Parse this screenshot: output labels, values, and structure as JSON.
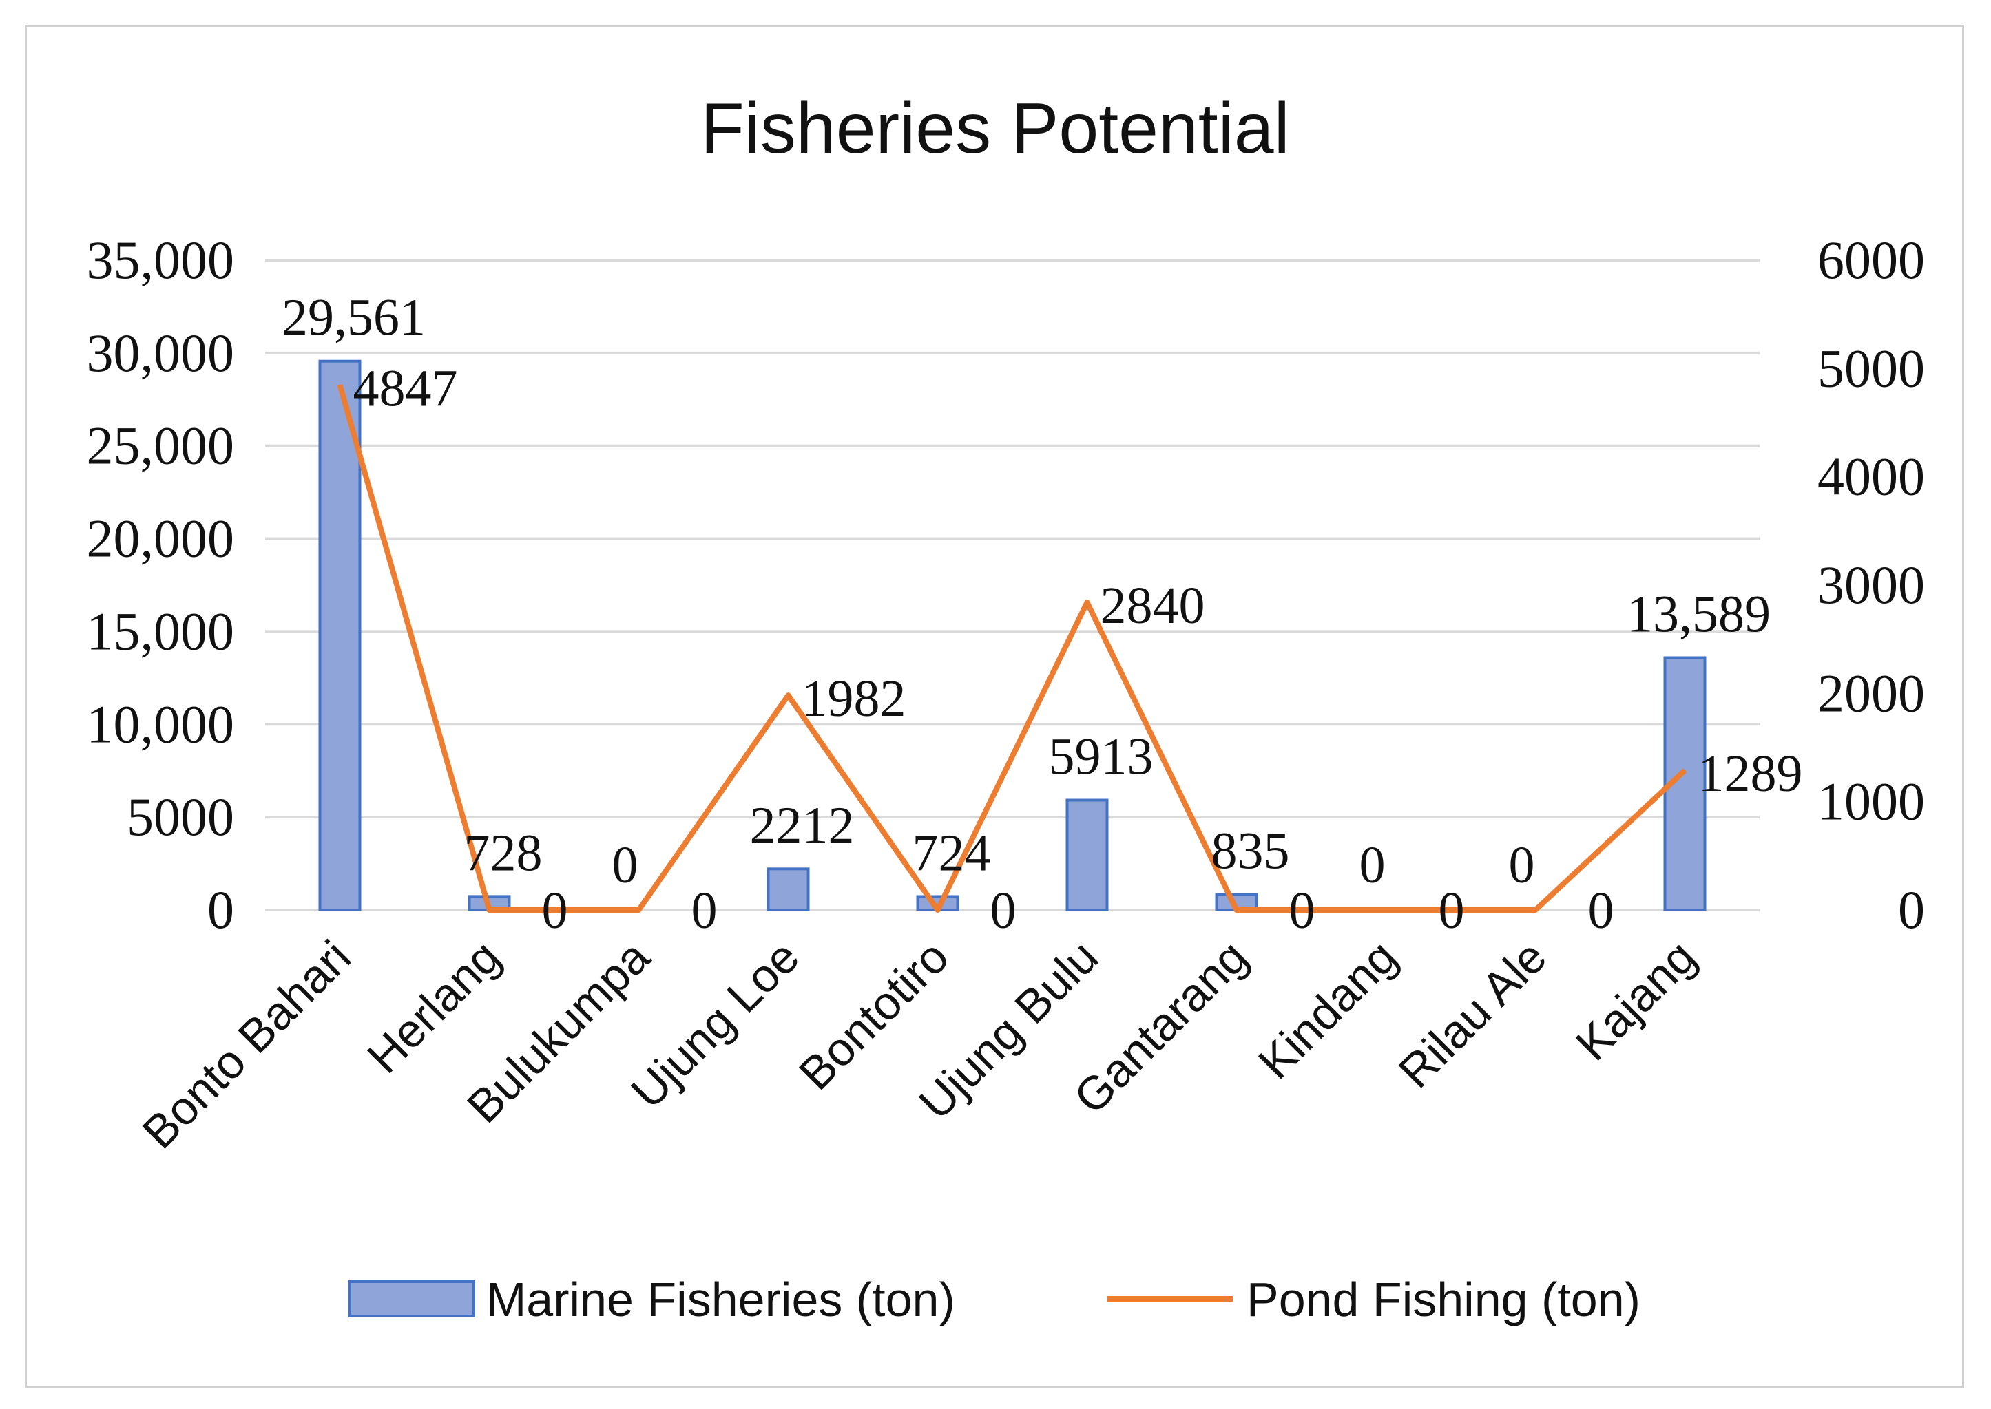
{
  "chart_data": {
    "type": "bar+line",
    "title": "Fisheries Potential",
    "categories": [
      "Bonto Bahari",
      "Herlang",
      "Bulukumpa",
      "Ujung Loe",
      "Bontotiro",
      "Ujung Bulu",
      "Gantarang",
      "Kindang",
      "Rilau Ale",
      "Kajang"
    ],
    "series": [
      {
        "name": "Marine Fisheries (ton)",
        "type": "bar",
        "axis": "left",
        "color": "#8fa4d8",
        "border_color": "#4472c4",
        "values": [
          29561,
          728,
          0,
          2212,
          724,
          5913,
          835,
          0,
          0,
          13589
        ],
        "labels": [
          "29,561",
          "728",
          "0",
          "2212",
          "724",
          "5913",
          "835",
          "0",
          "0",
          "13,589"
        ]
      },
      {
        "name": "Pond Fishing (ton)",
        "type": "line",
        "axis": "right",
        "color": "#ed7d31",
        "values": [
          4847,
          0,
          0,
          1982,
          0,
          2840,
          0,
          0,
          0,
          1289
        ],
        "labels": [
          "4847",
          "0",
          "0",
          "1982",
          "0",
          "2840",
          "0",
          "0",
          "0",
          "1289"
        ]
      }
    ],
    "y_left": {
      "lim": [
        0,
        35000
      ],
      "ticks": [
        0,
        5000,
        10000,
        15000,
        20000,
        25000,
        30000,
        35000
      ],
      "tick_labels": [
        "0",
        "5000",
        "10,000",
        "15,000",
        "20,000",
        "25,000",
        "30,000",
        "35,000"
      ]
    },
    "y_right": {
      "lim": [
        0,
        6000
      ],
      "ticks": [
        0,
        1000,
        2000,
        3000,
        4000,
        5000,
        6000
      ],
      "tick_labels": [
        "0",
        "1000",
        "2000",
        "3000",
        "4000",
        "5000",
        "6000"
      ]
    },
    "grid": true,
    "legend": "bottom"
  }
}
